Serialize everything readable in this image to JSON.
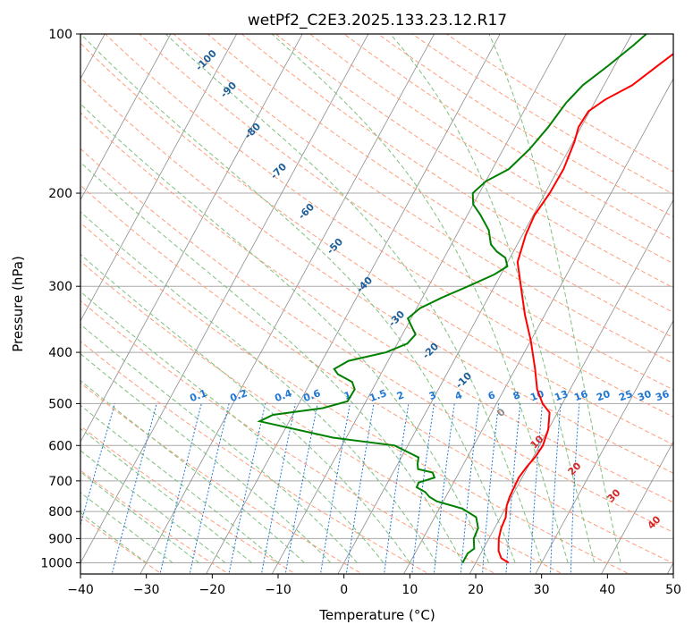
{
  "chart_data": {
    "type": "line",
    "title": "wetPf2_C2E3.2025.133.23.12.R17",
    "xlabel": "Temperature (°C)",
    "ylabel": "Pressure (hPa)",
    "xlim": [
      -40,
      50
    ],
    "ylim": [
      1050,
      100
    ],
    "y_scale": "log",
    "grid": true,
    "x_ticks": [
      "−40",
      "−30",
      "−20",
      "−10",
      "0",
      "10",
      "20",
      "30",
      "40",
      "50"
    ],
    "y_ticks": [
      "100",
      "200",
      "300",
      "400",
      "500",
      "600",
      "700",
      "800",
      "900",
      "1000"
    ],
    "series": [
      {
        "color": "#ff0000",
        "points": [
          [
            25,
            1000
          ],
          [
            23.5,
            980
          ],
          [
            22.5,
            950
          ],
          [
            21.5,
            900
          ],
          [
            21,
            860
          ],
          [
            20.8,
            820
          ],
          [
            20,
            780
          ],
          [
            19.7,
            750
          ],
          [
            19.6,
            720
          ],
          [
            19.5,
            690
          ],
          [
            19.8,
            660
          ],
          [
            20.3,
            630
          ],
          [
            20.5,
            600
          ],
          [
            20,
            560
          ],
          [
            18.8,
            520
          ],
          [
            17,
            500
          ],
          [
            15,
            470
          ],
          [
            13,
            430
          ],
          [
            10,
            380
          ],
          [
            7,
            340
          ],
          [
            4,
            300
          ],
          [
            1.5,
            270
          ],
          [
            0.5,
            240
          ],
          [
            0.2,
            220
          ],
          [
            0.7,
            200
          ],
          [
            0.8,
            180
          ],
          [
            0.2,
            160
          ],
          [
            -0.4,
            150
          ],
          [
            -0.2,
            140
          ],
          [
            1.4,
            133
          ],
          [
            4.3,
            125
          ],
          [
            6.5,
            115
          ],
          [
            8.2,
            108
          ],
          [
            9,
            100
          ]
        ]
      },
      {
        "color": "#008000",
        "points": [
          [
            18,
            1000
          ],
          [
            18,
            960
          ],
          [
            18.6,
            940
          ],
          [
            17.7,
            900
          ],
          [
            17.5,
            860
          ],
          [
            16.3,
            820
          ],
          [
            13.5,
            790
          ],
          [
            9,
            765
          ],
          [
            7.5,
            750
          ],
          [
            6.5,
            735
          ],
          [
            4.8,
            720
          ],
          [
            4.7,
            705
          ],
          [
            6.7,
            690
          ],
          [
            6,
            675
          ],
          [
            3.5,
            665
          ],
          [
            3,
            650
          ],
          [
            2.6,
            632
          ],
          [
            -2,
            600
          ],
          [
            -12,
            580
          ],
          [
            -24.5,
            540
          ],
          [
            -23,
            525
          ],
          [
            -16,
            510
          ],
          [
            -12.8,
            495
          ],
          [
            -12.7,
            470
          ],
          [
            -13.7,
            455
          ],
          [
            -16.5,
            440
          ],
          [
            -17.5,
            430
          ],
          [
            -16,
            415
          ],
          [
            -11,
            400
          ],
          [
            -8.5,
            385
          ],
          [
            -8,
            370
          ],
          [
            -9.5,
            355
          ],
          [
            -10.5,
            345
          ],
          [
            -9.5,
            330
          ],
          [
            -7,
            315
          ],
          [
            -4,
            300
          ],
          [
            -1,
            285
          ],
          [
            0.3,
            275
          ],
          [
            -0.7,
            265
          ],
          [
            -2.5,
            258
          ],
          [
            -4,
            250
          ],
          [
            -5.5,
            235
          ],
          [
            -8,
            220
          ],
          [
            -10,
            210
          ],
          [
            -11,
            200
          ],
          [
            -10,
            190
          ],
          [
            -7.5,
            180
          ],
          [
            -6,
            165
          ],
          [
            -5,
            150
          ],
          [
            -4.3,
            135
          ],
          [
            -3.2,
            125
          ],
          [
            -1,
            115
          ],
          [
            1.2,
            105
          ],
          [
            2.2,
            100
          ]
        ]
      }
    ],
    "dry_adiabat_labels": [
      "-100",
      "-90",
      "-80",
      "-70",
      "-60",
      "-50",
      "-40",
      "-30",
      "-20",
      "-10"
    ],
    "mixing_ratio_labels": [
      "0.1",
      "0.2",
      "0.4",
      "0.6",
      "1",
      "1.5",
      "2",
      "3",
      "4",
      "6",
      "8",
      "10",
      "13",
      "16",
      "20",
      "25",
      "30",
      "36"
    ],
    "moist_adiabat_labels": [
      "0",
      "10",
      "20",
      "30",
      "40"
    ],
    "colors": {
      "temperature": "#ff0000",
      "dewpoint": "#008000",
      "isotherm": "#8c8c8c",
      "isobar": "#a8a8a8",
      "dry_adiabat_color": "#ff9d7a",
      "moist_adiabat_color": "#7ec07e",
      "mixing_ratio_color": "#1f77d4",
      "dry_label_color": "#1f5f99",
      "moist_label_color": "#d62728"
    }
  }
}
